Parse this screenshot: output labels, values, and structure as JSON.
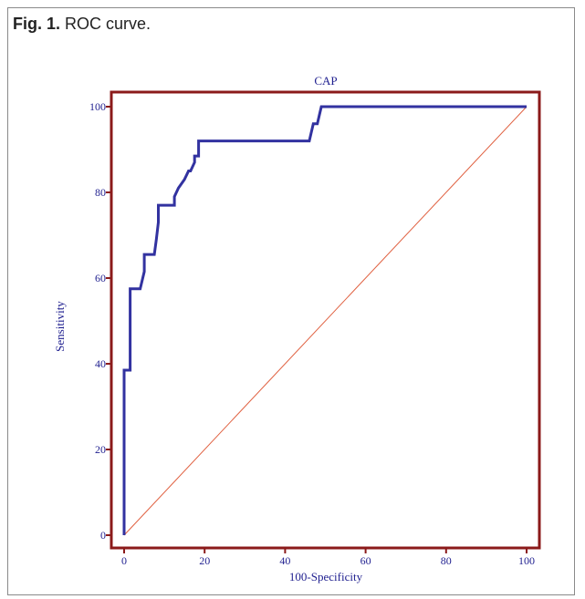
{
  "figure": {
    "label": "Fig. 1.",
    "caption": "ROC curve."
  },
  "chart_data": {
    "type": "line",
    "title": "CAP",
    "xlabel": "100-Specificity",
    "ylabel": "Sensitivity",
    "xlim": [
      0,
      100
    ],
    "ylim": [
      0,
      100
    ],
    "xticks": [
      0,
      20,
      40,
      60,
      80,
      100
    ],
    "yticks": [
      0,
      20,
      40,
      60,
      80,
      100
    ],
    "grid": false,
    "colors": {
      "frame": "#8b1a1a",
      "curve": "#3232a0",
      "diagonal": "#e06040",
      "text": "#1f1f8f"
    },
    "series": [
      {
        "x": [
          0,
          0,
          0,
          1.5,
          1.5,
          4,
          5,
          5,
          7.5,
          8,
          8.5,
          8.5,
          12.5,
          12.5,
          13.5,
          15,
          16,
          16.5,
          17.5,
          17.5,
          18.5,
          18.5,
          46,
          46.5,
          47,
          48,
          48.5,
          49,
          100
        ],
        "y": [
          0,
          38.5,
          38.5,
          38.5,
          57.5,
          57.5,
          61.5,
          65.5,
          65.5,
          69,
          73,
          77,
          77,
          79,
          81,
          83,
          85,
          85,
          87,
          88.5,
          88.5,
          92,
          92,
          94,
          96,
          96,
          98,
          100,
          100
        ]
      },
      {
        "x": [
          0,
          100
        ],
        "y": [
          0,
          100
        ]
      }
    ]
  }
}
